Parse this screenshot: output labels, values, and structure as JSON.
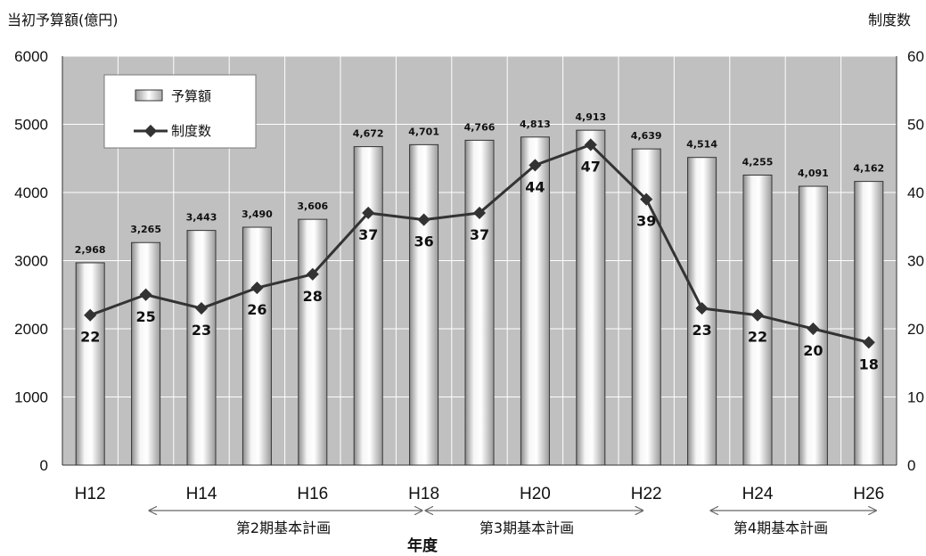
{
  "chart_data": {
    "type": "bar",
    "y_left_label": "当初予算額(億円)",
    "y_right_label": "制度数",
    "x_label": "年度",
    "categories": [
      "H12",
      "H13",
      "H14",
      "H15",
      "H16",
      "H17",
      "H18",
      "H19",
      "H20",
      "H21",
      "H22",
      "H23",
      "H24",
      "H25",
      "H26"
    ],
    "x_tick_labels": [
      "H12",
      "",
      "H14",
      "",
      "H16",
      "",
      "H18",
      "",
      "H20",
      "",
      "H22",
      "",
      "H24",
      "",
      "H26"
    ],
    "y_left_range": [
      0,
      6000
    ],
    "y_left_ticks": [
      "0",
      "1000",
      "2000",
      "3000",
      "4000",
      "5000",
      "6000"
    ],
    "y_right_range": [
      0,
      60
    ],
    "y_right_ticks": [
      "0",
      "10",
      "20",
      "30",
      "40",
      "50",
      "60"
    ],
    "grid": true,
    "series": [
      {
        "name": "予算額",
        "type": "bar",
        "axis": "left",
        "values": [
          2968,
          3265,
          3443,
          3490,
          3606,
          4672,
          4701,
          4766,
          4813,
          4913,
          4639,
          4514,
          4255,
          4091,
          4162
        ],
        "labels": [
          "2,968",
          "3,265",
          "3,443",
          "3,490",
          "3,606",
          "4,672",
          "4,701",
          "4,766",
          "4,813",
          "4,913",
          "4,639",
          "4,514",
          "4,255",
          "4,091",
          "4,162"
        ]
      },
      {
        "name": "制度数",
        "type": "line",
        "axis": "right",
        "values": [
          22,
          25,
          23,
          26,
          28,
          37,
          36,
          37,
          44,
          47,
          39,
          23,
          22,
          20,
          18
        ],
        "labels": [
          "22",
          "25",
          "23",
          "26",
          "28",
          "37",
          "36",
          "37",
          "44",
          "47",
          "39",
          "23",
          "22",
          "20",
          "18"
        ]
      }
    ],
    "legend": {
      "position": "top-left",
      "items": [
        "予算額",
        "制度数"
      ]
    },
    "periods": [
      {
        "label": "第2期基本計画",
        "from": "H13",
        "to": "H18"
      },
      {
        "label": "第3期基本計画",
        "from": "H18",
        "to": "H22"
      },
      {
        "label": "第4期基本計画",
        "from": "H23",
        "to": "H26"
      }
    ],
    "colors": {
      "plot_bg": "#c0c0c0",
      "grid": "#ffffff",
      "line": "#333333",
      "bar_edge": "#333333"
    }
  }
}
